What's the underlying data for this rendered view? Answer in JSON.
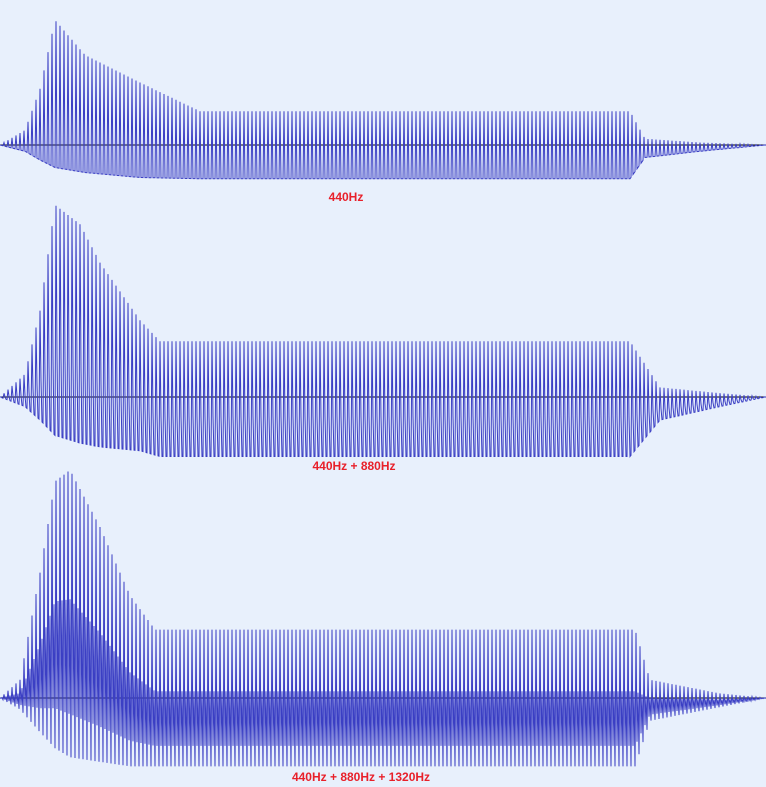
{
  "colors": {
    "background": "#e8f0fc",
    "waveform": "#3b3fc4",
    "baseline": "#000000",
    "label": "#e8202a"
  },
  "chart_data": [
    {
      "type": "line",
      "title": "440Hz",
      "harmonics": [
        440
      ],
      "grid": false,
      "envelope": {
        "x_ms": [
          0,
          25,
          40,
          55,
          85,
          140,
          200,
          630,
          645,
          700,
          766
        ],
        "peak": [
          0,
          0.12,
          0.45,
          1.0,
          0.72,
          0.5,
          0.27,
          0.27,
          0.05,
          0.02,
          0.0
        ],
        "trough": [
          0,
          -0.05,
          -0.12,
          -0.18,
          -0.22,
          -0.26,
          -0.27,
          -0.27,
          -0.1,
          -0.05,
          0.0
        ]
      }
    },
    {
      "type": "line",
      "title": "440Hz + 880Hz",
      "harmonics": [
        440,
        880
      ],
      "grid": false,
      "envelope": {
        "x_ms": [
          0,
          25,
          40,
          55,
          80,
          100,
          140,
          160,
          630,
          660,
          720,
          766
        ],
        "peak": [
          0,
          0.12,
          0.45,
          1.0,
          0.9,
          0.7,
          0.4,
          0.29,
          0.29,
          0.05,
          0.02,
          0.0
        ],
        "trough": [
          0,
          -0.05,
          -0.12,
          -0.2,
          -0.24,
          -0.26,
          -0.28,
          -0.31,
          -0.31,
          -0.12,
          -0.05,
          0.0
        ]
      }
    },
    {
      "type": "line",
      "title": "440Hz + 880Hz + 1320Hz",
      "harmonics": [
        440,
        880,
        1320
      ],
      "grid": false,
      "envelope": {
        "x_ms": [
          0,
          20,
          40,
          55,
          70,
          100,
          130,
          155,
          635,
          650,
          720,
          766
        ],
        "peak": [
          0,
          0.08,
          0.55,
          0.95,
          1.0,
          0.75,
          0.45,
          0.3,
          0.3,
          0.08,
          0.02,
          0.0
        ],
        "trough": [
          0,
          -0.05,
          -0.15,
          -0.22,
          -0.26,
          -0.28,
          -0.3,
          -0.3,
          -0.3,
          -0.1,
          -0.04,
          0.0
        ]
      }
    }
  ]
}
